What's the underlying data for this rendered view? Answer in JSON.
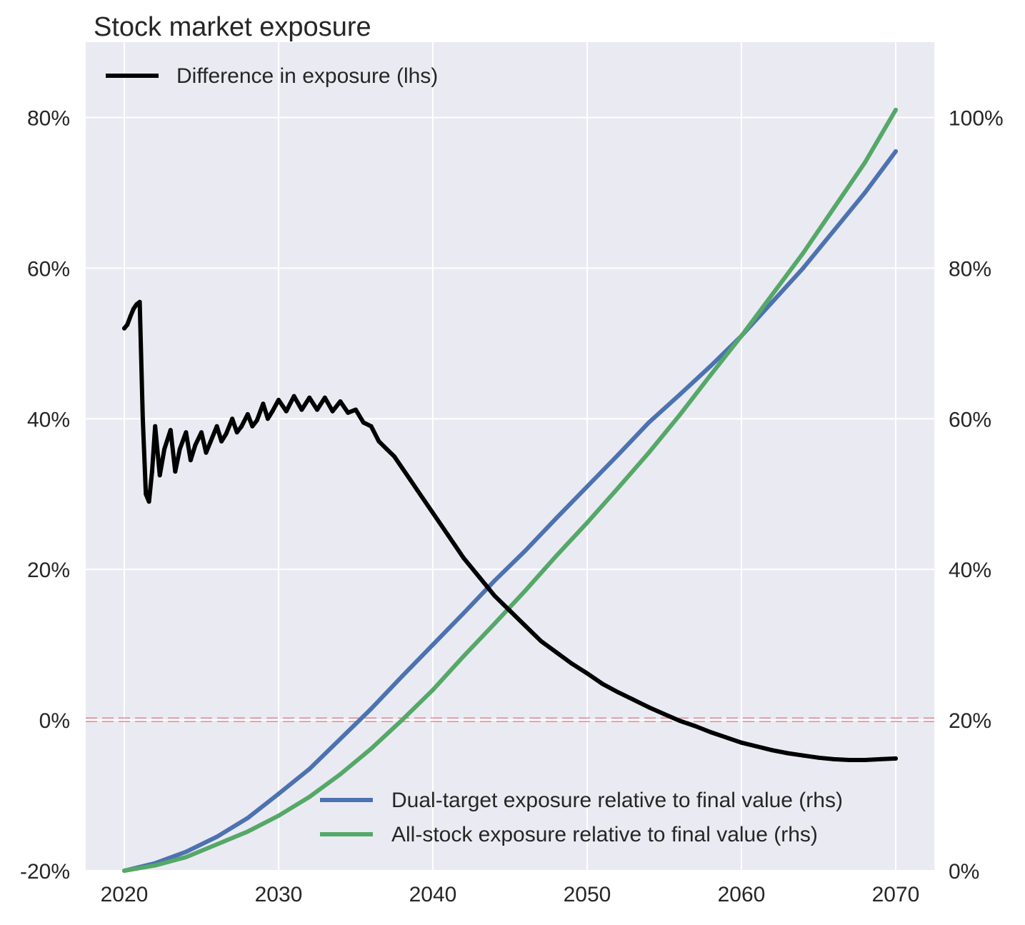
{
  "chart_data": {
    "type": "line",
    "title": "Stock market exposure",
    "xlabel": "",
    "ylabel_left": "",
    "ylabel_right": "",
    "x_ticks": [
      "2020",
      "2030",
      "2040",
      "2050",
      "2060",
      "2070"
    ],
    "x_tick_values": [
      2020,
      2030,
      2040,
      2050,
      2060,
      2070
    ],
    "xlim": [
      2017.5,
      2072.5
    ],
    "y_left": {
      "ticks": [
        "-20%",
        "0%",
        "20%",
        "40%",
        "60%",
        "80%"
      ],
      "tick_values": [
        -20,
        0,
        20,
        40,
        60,
        80
      ],
      "ylim": [
        -20,
        90
      ]
    },
    "y_right": {
      "ticks": [
        "0%",
        "20%",
        "40%",
        "60%",
        "80%",
        "100%"
      ],
      "tick_values": [
        0,
        20,
        40,
        60,
        80,
        100
      ],
      "ylim": [
        0,
        110
      ]
    },
    "grid": true,
    "reference_line": {
      "axis": "left",
      "y": 0,
      "color": "#e8747c",
      "style": "dashed"
    },
    "legends": {
      "left": {
        "placement": "upper-left",
        "entries": [
          "Difference in exposure (lhs)"
        ]
      },
      "right": {
        "placement": "lower-right",
        "entries": [
          "Dual-target exposure relative to final value (rhs)",
          "All-stock exposure relative to final value (rhs)"
        ]
      }
    },
    "series": [
      {
        "name": "Difference in exposure (lhs)",
        "axis": "left",
        "color": "#000000",
        "x": [
          2020.0,
          2020.2,
          2020.4,
          2020.6,
          2020.8,
          2021.0,
          2021.2,
          2021.4,
          2021.6,
          2021.8,
          2022.0,
          2022.3,
          2022.6,
          2023.0,
          2023.3,
          2023.6,
          2024.0,
          2024.3,
          2024.6,
          2025.0,
          2025.3,
          2025.6,
          2026.0,
          2026.3,
          2026.6,
          2027.0,
          2027.3,
          2027.6,
          2028.0,
          2028.3,
          2028.6,
          2029.0,
          2029.3,
          2029.6,
          2030.0,
          2030.5,
          2031.0,
          2031.5,
          2032.0,
          2032.5,
          2033.0,
          2033.5,
          2034.0,
          2034.5,
          2035.0,
          2035.5,
          2036.0,
          2036.5,
          2037.0,
          2037.5,
          2038.0,
          2038.5,
          2039.0,
          2039.5,
          2040.0,
          2041.0,
          2042.0,
          2043.0,
          2044.0,
          2045.0,
          2046.0,
          2047.0,
          2048.0,
          2049.0,
          2050.0,
          2051.0,
          2052.0,
          2053.0,
          2054.0,
          2055.0,
          2056.0,
          2057.0,
          2058.0,
          2059.0,
          2060.0,
          2061.0,
          2062.0,
          2063.0,
          2064.0,
          2065.0,
          2066.0,
          2067.0,
          2068.0,
          2069.0,
          2070.0
        ],
        "y": [
          52.0,
          52.5,
          53.6,
          54.6,
          55.2,
          55.5,
          40.0,
          30.0,
          29.0,
          33.0,
          39.0,
          32.5,
          36.0,
          38.5,
          33.0,
          36.0,
          38.2,
          34.5,
          36.5,
          38.2,
          35.5,
          37.0,
          39.0,
          37.0,
          38.0,
          40.0,
          38.2,
          39.0,
          40.6,
          39.0,
          39.8,
          42.0,
          40.0,
          41.0,
          42.5,
          41.0,
          43.0,
          41.2,
          42.8,
          41.2,
          42.8,
          41.0,
          42.3,
          40.8,
          41.2,
          39.5,
          39.0,
          37.0,
          36.0,
          35.0,
          33.5,
          32.0,
          30.5,
          29.0,
          27.5,
          24.5,
          21.5,
          19.0,
          16.5,
          14.5,
          12.5,
          10.5,
          9.0,
          7.5,
          6.2,
          4.8,
          3.7,
          2.7,
          1.7,
          0.8,
          -0.1,
          -0.8,
          -1.6,
          -2.3,
          -3.0,
          -3.5,
          -4.0,
          -4.4,
          -4.7,
          -5.0,
          -5.2,
          -5.3,
          -5.3,
          -5.2,
          -5.1
        ]
      },
      {
        "name": "Dual-target exposure relative to final value (rhs)",
        "axis": "right",
        "color": "#4c72b0",
        "x": [
          2020.0,
          2022.0,
          2024.0,
          2026.0,
          2028.0,
          2030.0,
          2032.0,
          2034.0,
          2036.0,
          2038.0,
          2040.0,
          2042.0,
          2044.0,
          2046.0,
          2048.0,
          2050.0,
          2052.0,
          2054.0,
          2056.0,
          2058.0,
          2060.0,
          2062.0,
          2064.0,
          2066.0,
          2068.0,
          2070.0
        ],
        "y": [
          0.0,
          1.0,
          2.5,
          4.5,
          7.0,
          10.2,
          13.5,
          17.5,
          21.5,
          25.8,
          30.0,
          34.2,
          38.5,
          42.5,
          46.8,
          51.0,
          55.2,
          59.5,
          63.2,
          67.0,
          71.0,
          75.5,
          80.0,
          85.0,
          90.0,
          95.5
        ]
      },
      {
        "name": "All-stock exposure relative to final value (rhs)",
        "axis": "right",
        "color": "#55a868",
        "x": [
          2020.0,
          2022.0,
          2024.0,
          2026.0,
          2028.0,
          2030.0,
          2032.0,
          2034.0,
          2036.0,
          2038.0,
          2040.0,
          2042.0,
          2044.0,
          2046.0,
          2048.0,
          2050.0,
          2052.0,
          2054.0,
          2056.0,
          2058.0,
          2060.0,
          2062.0,
          2064.0,
          2066.0,
          2068.0,
          2070.0
        ],
        "y": [
          0.0,
          0.7,
          1.8,
          3.5,
          5.2,
          7.3,
          9.8,
          12.8,
          16.2,
          20.0,
          24.0,
          28.5,
          32.8,
          37.2,
          41.8,
          46.2,
          50.8,
          55.5,
          60.5,
          65.8,
          71.0,
          76.5,
          82.0,
          88.0,
          94.0,
          101.0
        ]
      }
    ]
  }
}
